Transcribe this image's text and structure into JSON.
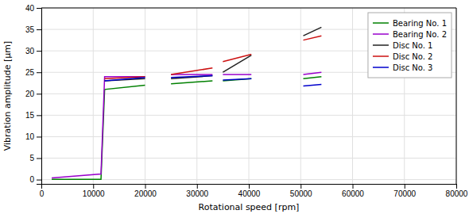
{
  "chart_data": {
    "type": "line",
    "xlabel": "Rotational speed [rpm]",
    "ylabel": "Vibration amplitude [μm]",
    "x": [
      2000,
      11500,
      12200,
      20000,
      20000,
      25000,
      33000,
      33000,
      35000,
      40500,
      40500,
      50500,
      54000
    ],
    "series": [
      {
        "name": "Bearing No. 1",
        "color": "#008000",
        "values": [
          0.05,
          0.05,
          21.0,
          22.0,
          null,
          22.3,
          23.0,
          null,
          23.0,
          23.5,
          null,
          23.5,
          24.0
        ]
      },
      {
        "name": "Bearing No. 2",
        "color": "#9900cc",
        "values": [
          0.4,
          1.3,
          24.0,
          24.0,
          null,
          24.5,
          24.5,
          null,
          24.5,
          24.5,
          null,
          24.5,
          25.0
        ]
      },
      {
        "name": "Disc No. 1",
        "color": "#222222",
        "values": [
          null,
          null,
          23.0,
          23.5,
          null,
          23.5,
          24.2,
          null,
          25.0,
          29.0,
          null,
          33.5,
          35.5
        ]
      },
      {
        "name": "Disc No. 2",
        "color": "#cc1111",
        "values": [
          null,
          null,
          23.5,
          24.0,
          null,
          24.5,
          26.0,
          null,
          27.5,
          29.2,
          null,
          32.5,
          33.5
        ]
      },
      {
        "name": "Disc No. 3",
        "color": "#0000cc",
        "values": [
          null,
          null,
          23.0,
          23.8,
          null,
          23.8,
          24.2,
          null,
          23.2,
          23.5,
          null,
          21.8,
          22.2
        ]
      }
    ],
    "xlim": [
      0,
      80000
    ],
    "xticks": [
      0,
      10000,
      20000,
      30000,
      40000,
      50000,
      60000,
      70000,
      80000
    ],
    "ylim": [
      -1,
      40
    ],
    "yticks": [
      0,
      5,
      10,
      15,
      20,
      25,
      30,
      35,
      40
    ],
    "grid": true,
    "legend": "upper right"
  }
}
